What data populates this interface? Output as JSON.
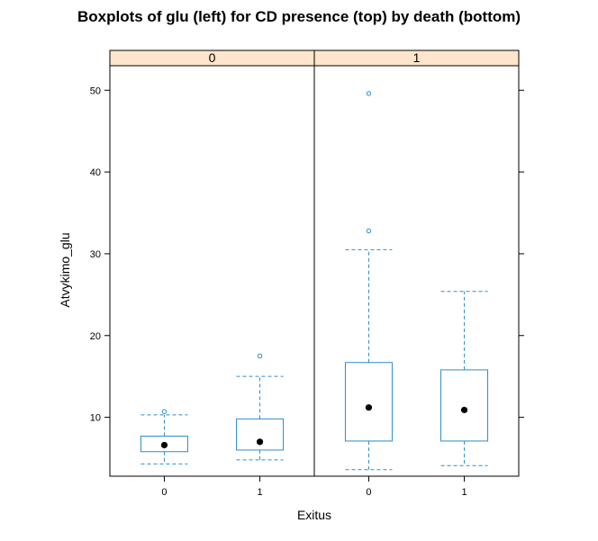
{
  "chart_data": {
    "type": "boxplot",
    "title": "Boxplots of glu (left) for CD presence (top) by death (bottom)",
    "xlabel": "Exitus",
    "ylabel": "Atvykimo_glu",
    "ylim": [
      2.8,
      53.0
    ],
    "yticks": [
      10,
      20,
      30,
      40,
      50
    ],
    "categories": [
      "0",
      "1"
    ],
    "panels": [
      {
        "strip_label": "0",
        "boxes": [
          {
            "category": "0",
            "whisker_low": 4.3,
            "q1": 5.8,
            "median": 6.6,
            "q3": 7.7,
            "whisker_high": 10.3,
            "outliers": [
              10.7
            ]
          },
          {
            "category": "1",
            "whisker_low": 4.8,
            "q1": 6.0,
            "median": 7.0,
            "q3": 9.8,
            "whisker_high": 15.0,
            "outliers": [
              17.5
            ]
          }
        ]
      },
      {
        "strip_label": "1",
        "boxes": [
          {
            "category": "0",
            "whisker_low": 3.6,
            "q1": 7.1,
            "median": 11.2,
            "q3": 16.7,
            "whisker_high": 30.5,
            "outliers": [
              32.8,
              49.6
            ]
          },
          {
            "category": "1",
            "whisker_low": 4.1,
            "q1": 7.1,
            "median": 10.9,
            "q3": 15.8,
            "whisker_high": 25.4,
            "outliers": []
          }
        ]
      }
    ],
    "colors": {
      "box": "#2e8cc8",
      "whisker": "#2e8cc8",
      "median_dot": "#000000",
      "strip_bg": "#ffe5cc",
      "frame": "#000000"
    },
    "grid": false,
    "legend": "none"
  }
}
